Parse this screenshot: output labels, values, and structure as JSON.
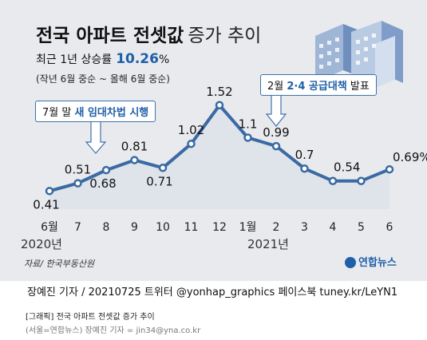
{
  "header": {
    "title_bold": "전국 아파트 전셋값",
    "title_light": "증가 추이",
    "sub_prefix": "최근 1년 상승률",
    "sub_value": "10.26",
    "sub_unit": "%",
    "sub_period": "(작년 6월 중순 ~ 올해 6월 중순)"
  },
  "annotations": {
    "left_prefix": "7월 말",
    "left_highlight": "새 임대차법 시행",
    "right_prefix": "2월",
    "right_highlight": "2·4 공급대책",
    "right_suffix": "발표"
  },
  "source": "자료/ 한국부동산원",
  "logo": "연합뉴스",
  "credit": "장예진 기자 / 20210725 트위터 @yonhap_graphics  페이스북 tuney.kr/LeYN1",
  "footer": {
    "line1": "[그래픽] 전국 아파트 전셋값 증가 추이",
    "line2": "(서울=연합뉴스) 장예진 기자 = jin34@yna.co.kr"
  },
  "colors": {
    "line": "#3a6aa3",
    "area": "#dfe3ea",
    "accent": "#1f5fa8"
  },
  "chart_data": {
    "type": "area",
    "categories": [
      "6월",
      "7",
      "8",
      "9",
      "10",
      "11",
      "12",
      "1월",
      "2",
      "3",
      "4",
      "5",
      "6"
    ],
    "values": [
      0.41,
      0.51,
      0.68,
      0.81,
      0.71,
      1.02,
      1.52,
      1.1,
      0.99,
      0.7,
      0.54,
      0.54,
      0.69
    ],
    "value_labels": [
      "0.41",
      "0.51",
      "0.68",
      "0.81",
      "0.71",
      "1.02",
      "1.52",
      "1.1",
      "0.99",
      "0.7",
      "0.54",
      "",
      "0.69%"
    ],
    "year_labels": [
      {
        "text": "2020년",
        "under": 0
      },
      {
        "text": "2021년",
        "under": 8
      }
    ],
    "ylim": [
      0.3,
      1.6
    ],
    "grid": false,
    "unit": "%"
  }
}
